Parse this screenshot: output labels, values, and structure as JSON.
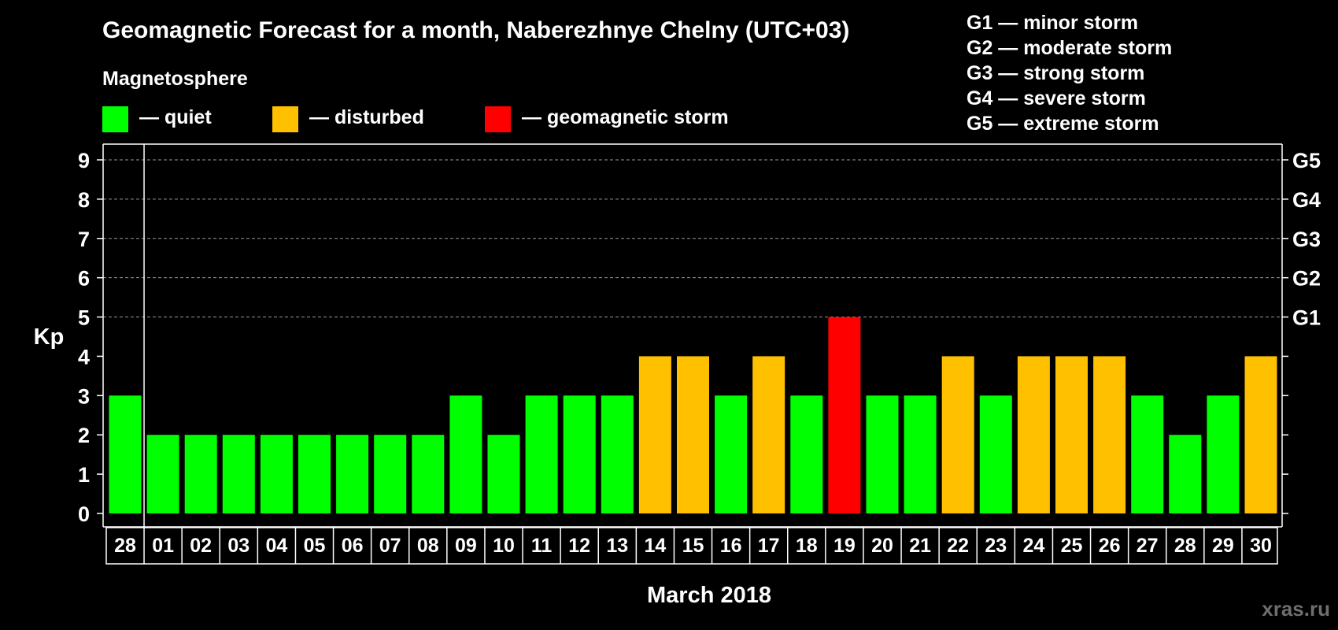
{
  "chart_data": {
    "type": "bar",
    "title": "Geomagnetic Forecast for a month, Naberezhnye Chelny (UTC+03)",
    "xlabel": "March 2018",
    "ylabel": "Kp",
    "ylim": [
      0,
      9
    ],
    "yticks": [
      "0",
      "1",
      "2",
      "3",
      "4",
      "5",
      "6",
      "7",
      "8",
      "9"
    ],
    "right_ticks": [
      {
        "kp": 5,
        "label": "G1"
      },
      {
        "kp": 6,
        "label": "G2"
      },
      {
        "kp": 7,
        "label": "G3"
      },
      {
        "kp": 8,
        "label": "G4"
      },
      {
        "kp": 9,
        "label": "G5"
      }
    ],
    "grid": "dashed at Kp 5-9",
    "categories": [
      "28",
      "01",
      "02",
      "03",
      "04",
      "05",
      "06",
      "07",
      "08",
      "09",
      "10",
      "11",
      "12",
      "13",
      "14",
      "15",
      "16",
      "17",
      "18",
      "19",
      "20",
      "21",
      "22",
      "23",
      "24",
      "25",
      "26",
      "27",
      "28",
      "29",
      "30"
    ],
    "values": [
      3,
      2,
      2,
      2,
      2,
      2,
      2,
      2,
      2,
      3,
      2,
      3,
      3,
      3,
      4,
      4,
      3,
      4,
      3,
      5,
      3,
      3,
      4,
      3,
      4,
      4,
      4,
      3,
      2,
      3,
      4
    ],
    "levels": [
      "quiet",
      "quiet",
      "quiet",
      "quiet",
      "quiet",
      "quiet",
      "quiet",
      "quiet",
      "quiet",
      "quiet",
      "quiet",
      "quiet",
      "quiet",
      "quiet",
      "disturbed",
      "disturbed",
      "quiet",
      "disturbed",
      "quiet",
      "storm",
      "quiet",
      "quiet",
      "disturbed",
      "quiet",
      "disturbed",
      "disturbed",
      "disturbed",
      "quiet",
      "quiet",
      "quiet",
      "disturbed"
    ]
  },
  "legend": {
    "heading": "Magnetosphere",
    "items": [
      {
        "key": "quiet",
        "label": "— quiet",
        "color": "#00ff00"
      },
      {
        "key": "disturbed",
        "label": "— disturbed",
        "color": "#ffc000"
      },
      {
        "key": "storm",
        "label": "— geomagnetic storm",
        "color": "#ff0000"
      }
    ]
  },
  "storm_scale": [
    "G1 — minor storm",
    "G2 — moderate storm",
    "G3 — strong storm",
    "G4 — severe storm",
    "G5 — extreme storm"
  ],
  "watermark": "xras.ru"
}
